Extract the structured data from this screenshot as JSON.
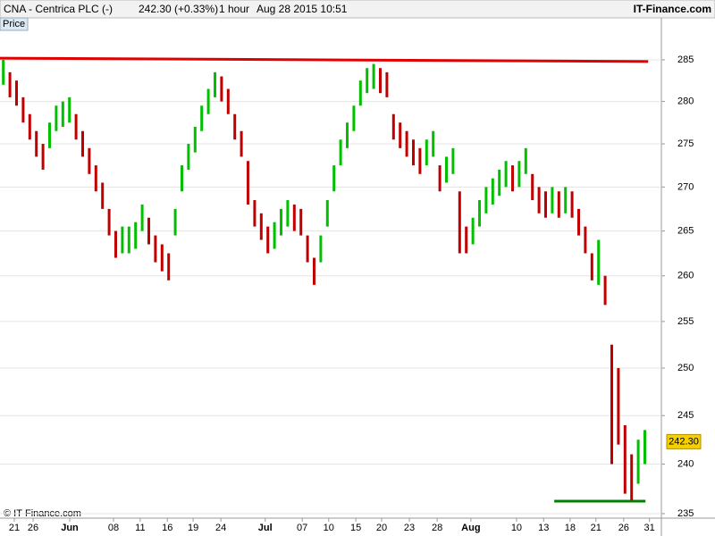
{
  "chart_data": {
    "type": "ohlc",
    "title": "CNA - Centrica PLC (-)",
    "quote": "242.30 (+0.33%)",
    "interval": "1 hour",
    "datetime": "Aug 28 2015 10:51",
    "brand": "IT-Finance.com",
    "panel_label": "Price",
    "copyright": "© IT-Finance.com",
    "last_price": {
      "value": 242.3,
      "label": "242.30"
    },
    "up_color": "#00c000",
    "down_color": "#c00000",
    "log_scale": true,
    "grid": true,
    "ylim": [
      234.55,
      290.13
    ],
    "yticks": [
      235,
      240,
      245,
      250,
      255,
      260,
      265,
      270,
      275,
      280,
      285
    ],
    "xlim": [
      -0.5,
      99.5
    ],
    "xticks": [
      {
        "value": 1.66,
        "label": "21"
      },
      {
        "value": 4.5,
        "label": "26"
      },
      {
        "value": 10.04,
        "label": "Jun"
      },
      {
        "value": 16.66,
        "label": "08"
      },
      {
        "value": 20.7,
        "label": "11"
      },
      {
        "value": 24.8,
        "label": "16"
      },
      {
        "value": 28.7,
        "label": "19"
      },
      {
        "value": 32.9,
        "label": "24"
      },
      {
        "value": 39.6,
        "label": "Jul"
      },
      {
        "value": 45.2,
        "label": "07"
      },
      {
        "value": 49.2,
        "label": "10"
      },
      {
        "value": 53.3,
        "label": "15"
      },
      {
        "value": 57.2,
        "label": "20"
      },
      {
        "value": 61.4,
        "label": "23"
      },
      {
        "value": 65.6,
        "label": "28"
      },
      {
        "value": 70.7,
        "label": "Aug"
      },
      {
        "value": 77.6,
        "label": "10"
      },
      {
        "value": 81.7,
        "label": "13"
      },
      {
        "value": 85.7,
        "label": "18"
      },
      {
        "value": 89.6,
        "label": "21"
      },
      {
        "value": 93.8,
        "label": "26"
      },
      {
        "value": 97.7,
        "label": "31"
      }
    ],
    "low": [
      282,
      280.5,
      279.5,
      277.5,
      275.5,
      273.5,
      272,
      274.5,
      276.5,
      277,
      277.5,
      275.5,
      273.5,
      271.5,
      269.5,
      267.5,
      264.5,
      262,
      262.5,
      262.5,
      263,
      265,
      263.5,
      261.5,
      260.5,
      259.5,
      264.5,
      269.5,
      272,
      274,
      276.5,
      278.5,
      280.5,
      280,
      278.5,
      275.5,
      273.5,
      268,
      265.5,
      264,
      262.5,
      263,
      264.5,
      265.5,
      265,
      264.5,
      261.5,
      259,
      261.5,
      265.5,
      269.5,
      272.5,
      274.5,
      276.5,
      279.5,
      281,
      281.5,
      281,
      280.5,
      275.5,
      274.5,
      273.5,
      272.5,
      271.5,
      272.5,
      273.5,
      269.5,
      270.5,
      271.5,
      262.5,
      262.5,
      263.5,
      265.5,
      267,
      268,
      269,
      270,
      269.5,
      270,
      271.5,
      268.5,
      267,
      266.5,
      267,
      266.5,
      267,
      266.5,
      264.5,
      262.5,
      259.5,
      259,
      256.8,
      240,
      242,
      237,
      236.3,
      238,
      240
    ],
    "high": [
      285,
      283.5,
      282.5,
      280.5,
      278.5,
      276.5,
      275,
      277.5,
      279.5,
      280,
      280.5,
      278.5,
      276.5,
      274.5,
      272.5,
      270.5,
      267.5,
      265,
      265.5,
      265.5,
      266,
      268,
      266.5,
      264.5,
      263.5,
      262.5,
      267.5,
      272.5,
      275,
      277,
      279.5,
      281.5,
      283.5,
      283,
      281.5,
      278.5,
      276.5,
      273,
      268.5,
      267,
      265.5,
      266,
      267.5,
      268.5,
      268,
      267.5,
      264.5,
      262,
      264.5,
      268.5,
      272.5,
      275.5,
      277.5,
      279.5,
      282.5,
      284,
      284.5,
      284,
      283.5,
      278.5,
      277.5,
      276.5,
      275.5,
      274.5,
      275.5,
      276.5,
      272.5,
      273.5,
      274.5,
      269.5,
      265.5,
      266.5,
      268.5,
      270,
      271,
      272,
      273,
      272.5,
      273,
      274.5,
      271.5,
      270,
      269.5,
      270,
      269.5,
      270,
      269.5,
      267.5,
      265.5,
      262.5,
      264,
      260,
      252.5,
      250,
      244,
      241,
      242.5,
      243.5
    ],
    "lines": [
      {
        "from": [
          -0.5,
          285.2
        ],
        "to": [
          97.5,
          284.8
        ],
        "color": "#e00000"
      },
      {
        "from": [
          83.3,
          236.25
        ],
        "to": [
          97.1,
          236.25
        ],
        "color": "#008000"
      }
    ]
  }
}
